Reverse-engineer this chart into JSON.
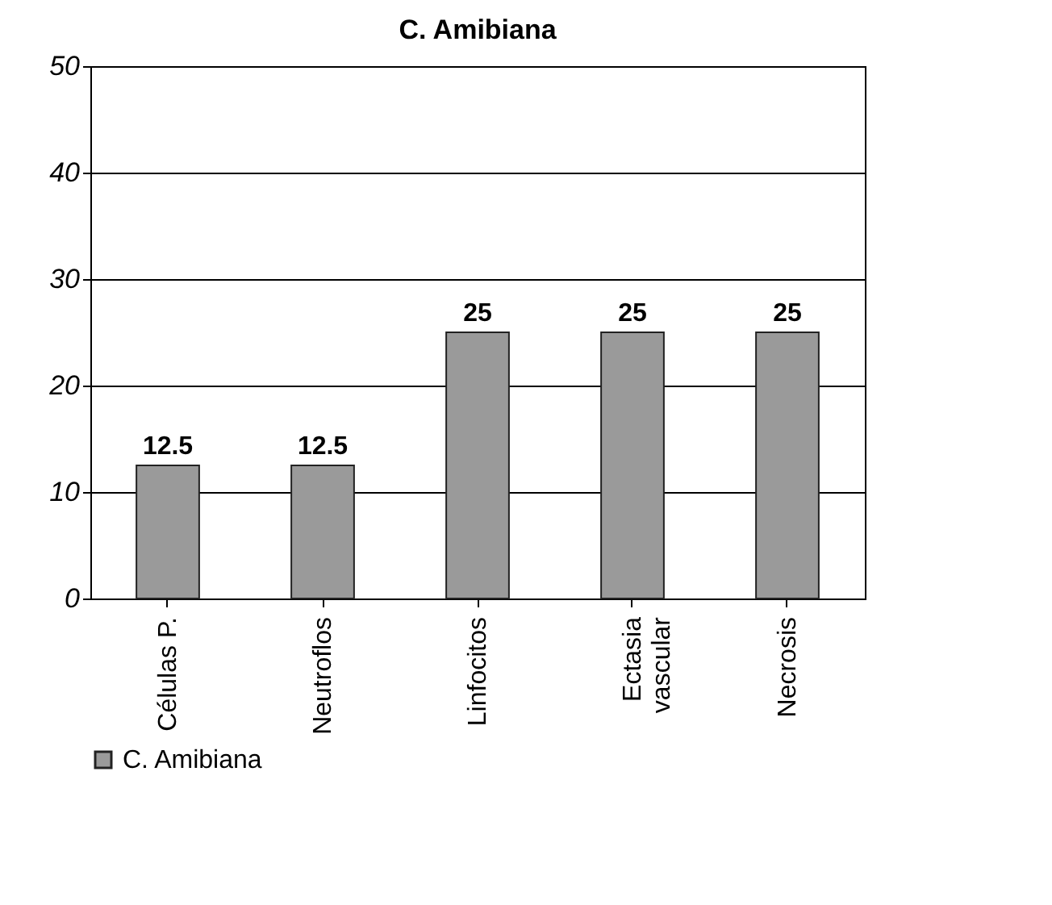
{
  "chart_data": {
    "type": "bar",
    "title": "C. Amibiana",
    "categories": [
      "Células P.",
      "Neutroflos",
      "Linfocitos",
      "Ectasia\nvascular",
      "Necrosis"
    ],
    "series": [
      {
        "name": "C. Amibiana",
        "color": "#9a9a9a",
        "values": [
          12.5,
          12.5,
          25,
          25,
          25
        ]
      }
    ],
    "ylim": [
      0,
      50
    ],
    "yticks": [
      0,
      10,
      20,
      30,
      40,
      50
    ],
    "grid": "y",
    "legend": "bottom left",
    "data_labels": true
  }
}
